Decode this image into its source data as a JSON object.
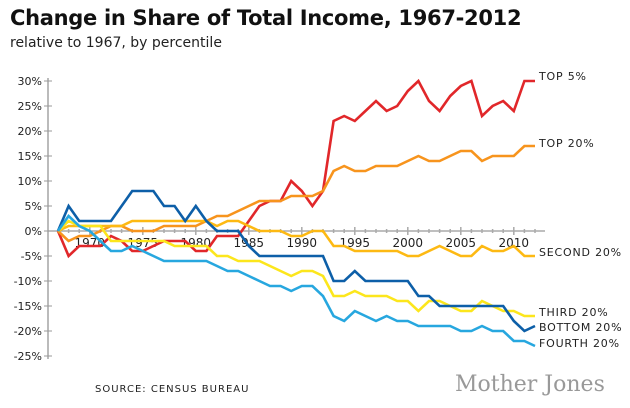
{
  "chart_data": {
    "type": "line",
    "title": "Change in Share of Total Income, 1967-2012",
    "subtitle": "relative to 1967, by percentile",
    "source": "SOURCE: CENSUS BUREAU",
    "logo": "Mother Jones",
    "x": [
      1967,
      1968,
      1969,
      1970,
      1971,
      1972,
      1973,
      1974,
      1975,
      1976,
      1977,
      1978,
      1979,
      1980,
      1981,
      1982,
      1983,
      1984,
      1985,
      1986,
      1987,
      1988,
      1989,
      1990,
      1991,
      1992,
      1993,
      1994,
      1995,
      1996,
      1997,
      1998,
      1999,
      2000,
      2001,
      2002,
      2003,
      2004,
      2005,
      2006,
      2007,
      2008,
      2009,
      2010,
      2011,
      2012
    ],
    "xticks": [
      1970,
      1975,
      1980,
      1985,
      1990,
      1995,
      2000,
      2005,
      2010
    ],
    "ylim": [
      -25,
      30
    ],
    "yticks": [
      "30%",
      "25%",
      "20%",
      "15%",
      "10%",
      "5%",
      "0%",
      "-5%",
      "-10%",
      "-15%",
      "-20%",
      "-25%"
    ],
    "ytick_values": [
      30,
      25,
      20,
      15,
      10,
      5,
      0,
      -5,
      -10,
      -15,
      -20,
      -25
    ],
    "grid": false,
    "series": [
      {
        "name": "TOP 5%",
        "color": "#e1272a",
        "values": [
          0,
          -5,
          -3,
          -3,
          -3,
          -1,
          -2,
          -4,
          -4,
          -3,
          -2,
          -2,
          -2,
          -4,
          -4,
          -1,
          -1,
          -1,
          2,
          5,
          6,
          6,
          10,
          8,
          5,
          8,
          22,
          23,
          22,
          24,
          26,
          24,
          25,
          28,
          30,
          26,
          24,
          27,
          29,
          30,
          23,
          25,
          26,
          24,
          30,
          30
        ]
      },
      {
        "name": "TOP 20%",
        "color": "#f7941d",
        "values": [
          0,
          -2,
          -1,
          -1,
          0,
          1,
          1,
          0,
          0,
          0,
          1,
          1,
          1,
          1,
          2,
          3,
          3,
          4,
          5,
          6,
          6,
          6,
          7,
          7,
          7,
          8,
          12,
          13,
          12,
          12,
          13,
          13,
          13,
          14,
          15,
          14,
          14,
          15,
          16,
          16,
          14,
          15,
          15,
          15,
          17,
          17
        ]
      },
      {
        "name": "SECOND 20%",
        "color": "#fdb913",
        "values": [
          0,
          1,
          1,
          1,
          1,
          1,
          1,
          2,
          2,
          2,
          2,
          2,
          2,
          2,
          2,
          1,
          2,
          2,
          1,
          0,
          0,
          0,
          -1,
          -1,
          0,
          0,
          -3,
          -3,
          -4,
          -4,
          -4,
          -4,
          -4,
          -5,
          -5,
          -4,
          -3,
          -4,
          -5,
          -5,
          -3,
          -4,
          -4,
          -3,
          -5,
          -5
        ]
      },
      {
        "name": "THIRD 20%",
        "color": "#fce61c",
        "values": [
          0,
          2,
          1,
          1,
          1,
          -2,
          -2,
          -2,
          -2,
          -2,
          -2,
          -3,
          -3,
          -3,
          -3,
          -5,
          -5,
          -6,
          -6,
          -6,
          -7,
          -8,
          -9,
          -8,
          -8,
          -9,
          -13,
          -13,
          -12,
          -13,
          -13,
          -13,
          -14,
          -14,
          -16,
          -14,
          -14,
          -15,
          -16,
          -16,
          -14,
          -15,
          -16,
          -16,
          -17,
          -17
        ]
      },
      {
        "name": "BOTTOM 20%",
        "color": "#0d5fa8",
        "values": [
          0,
          5,
          2,
          2,
          2,
          2,
          5,
          8,
          8,
          8,
          5,
          5,
          2,
          5,
          2,
          0,
          0,
          0,
          -3,
          -5,
          -5,
          -5,
          -5,
          -5,
          -5,
          -5,
          -10,
          -10,
          -8,
          -10,
          -10,
          -10,
          -10,
          -10,
          -13,
          -13,
          -15,
          -15,
          -15,
          -15,
          -15,
          -15,
          -15,
          -18,
          -20,
          -19
        ]
      },
      {
        "name": "FOURTH 20%",
        "color": "#27a7df",
        "values": [
          0,
          3,
          1,
          0,
          -2,
          -4,
          -4,
          -3,
          -4,
          -5,
          -6,
          -6,
          -6,
          -6,
          -6,
          -7,
          -8,
          -8,
          -9,
          -10,
          -11,
          -11,
          -12,
          -11,
          -11,
          -13,
          -17,
          -18,
          -16,
          -17,
          -18,
          -17,
          -18,
          -18,
          -19,
          -19,
          -19,
          -19,
          -20,
          -20,
          -19,
          -20,
          -20,
          -22,
          -22,
          -23
        ]
      }
    ],
    "legend": "inline-right"
  }
}
